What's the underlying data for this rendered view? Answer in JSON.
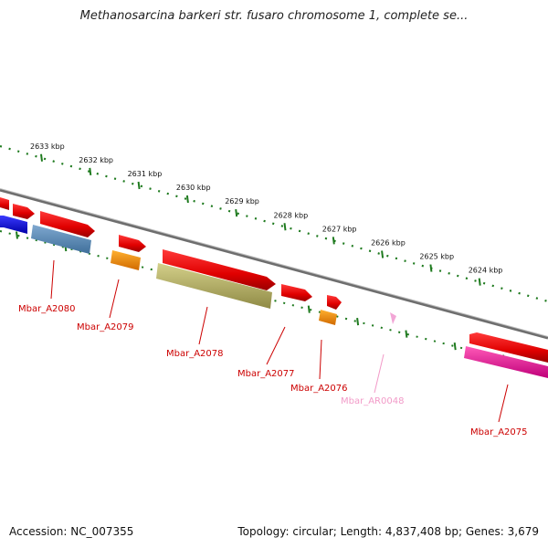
{
  "title": "Methanosarcina barkeri str. fusaro chromosome 1, complete se...",
  "footer": {
    "accession": "Accession: NC_007355",
    "summary": "Topology: circular; Length: 4,837,408 bp; Genes: 3,679"
  },
  "colors": {
    "backbone": "#8a8a8a",
    "tick": "#1e7a1e",
    "label_red": "#cc0000",
    "label_pink": "#f29ac8"
  },
  "scale": {
    "labels": [
      "2633 kbp",
      "2632 kbp",
      "2631 kbp",
      "2630 kbp",
      "2629 kbp",
      "2628 kbp",
      "2627 kbp",
      "2626 kbp",
      "2625 kbp",
      "2624 kbp"
    ]
  },
  "genes": [
    {
      "id": "Mbar_A2080",
      "label": "Mbar_A2080",
      "label_color": "red"
    },
    {
      "id": "Mbar_A2079",
      "label": "Mbar_A2079",
      "label_color": "red"
    },
    {
      "id": "Mbar_A2078",
      "label": "Mbar_A2078",
      "label_color": "red"
    },
    {
      "id": "Mbar_A2077",
      "label": "Mbar_A2077",
      "label_color": "red"
    },
    {
      "id": "Mbar_A2076",
      "label": "Mbar_A2076",
      "label_color": "red"
    },
    {
      "id": "Mbar_AR0048",
      "label": "Mbar_AR0048",
      "label_color": "pink"
    },
    {
      "id": "Mbar_A2075",
      "label": "Mbar_A2075",
      "label_color": "red"
    }
  ]
}
